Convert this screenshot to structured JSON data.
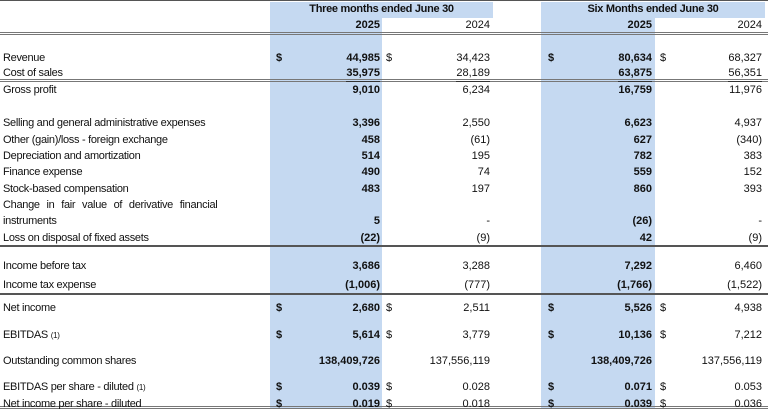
{
  "header": {
    "period_1": "Three months ended June 30",
    "period_2": "Six Months ended June 30",
    "years": [
      "2025",
      "2024",
      "2025",
      "2024"
    ]
  },
  "colors": {
    "highlight": "#c5d9f1"
  },
  "rows": [
    {
      "label": "Revenue",
      "values": [
        "44,985",
        "34,423",
        "80,634",
        "68,327"
      ],
      "dollar": true
    },
    {
      "label": "Cost of sales",
      "values": [
        "35,975",
        "28,189",
        "63,875",
        "56,351"
      ]
    },
    {
      "label": "Gross profit",
      "values": [
        "9,010",
        "6,234",
        "16,759",
        "11,976"
      ]
    },
    {
      "label": "Selling and general administrative expenses",
      "values": [
        "3,396",
        "2,550",
        "6,623",
        "4,937"
      ]
    },
    {
      "label": "Other (gain)/loss - foreign exchange",
      "values": [
        "458",
        "(61)",
        "627",
        "(340)"
      ]
    },
    {
      "label": "Depreciation and amortization",
      "values": [
        "514",
        "195",
        "782",
        "383"
      ]
    },
    {
      "label": "Finance expense",
      "values": [
        "490",
        "74",
        "559",
        "152"
      ]
    },
    {
      "label": "Stock-based compensation",
      "values": [
        "483",
        "197",
        "860",
        "393"
      ]
    },
    {
      "label": "Change in fair value of derivative financial",
      "label_2": "instruments",
      "values": [
        "5",
        "-",
        "(26)",
        "-"
      ]
    },
    {
      "label": "Loss on disposal of fixed assets",
      "values": [
        "(22)",
        "(9)",
        "42",
        "(9)"
      ]
    },
    {
      "label": "Income before tax",
      "values": [
        "3,686",
        "3,288",
        "7,292",
        "6,460"
      ]
    },
    {
      "label": "Income tax expense",
      "values": [
        "(1,006)",
        "(777)",
        "(1,766)",
        "(1,522)"
      ]
    },
    {
      "label": "Net income",
      "values": [
        "2,680",
        "2,511",
        "5,526",
        "4,938"
      ],
      "dollar": true
    },
    {
      "label": "EBITDAS",
      "note": "(1)",
      "values": [
        "5,614",
        "3,779",
        "10,136",
        "7,212"
      ],
      "dollar": true
    },
    {
      "label": "Outstanding common shares",
      "values": [
        "138,409,726",
        "137,556,119",
        "138,409,726",
        "137,556,119"
      ]
    },
    {
      "label": "EBITDAS per share - diluted",
      "note": "(1)",
      "values": [
        "0.039",
        "0.028",
        "0.071",
        "0.053"
      ],
      "dollar": true
    },
    {
      "label": "Net income per share - diluted",
      "values": [
        "0.019",
        "0.018",
        "0.039",
        "0.036"
      ],
      "dollar": true
    }
  ],
  "currency_symbol": "$"
}
